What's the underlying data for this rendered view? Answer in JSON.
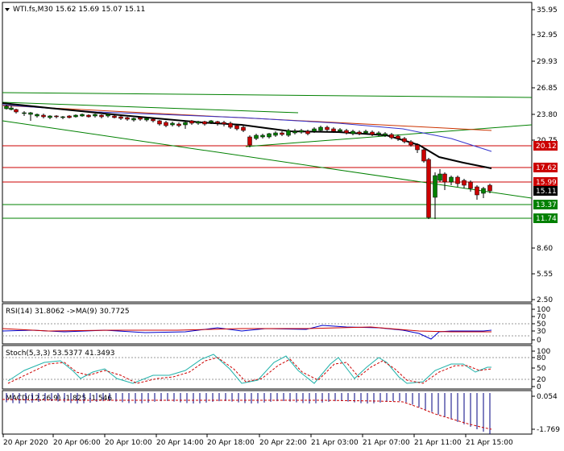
{
  "header": {
    "symbol_line": "WTI.fs,M30  15.62 15.69 15.07 15.11",
    "menu_icon": "triangle-down-icon"
  },
  "price_axis": {
    "ticks": [
      "35.95",
      "32.95",
      "29.93",
      "26.85",
      "23.80",
      "20.75",
      "8.60",
      "5.55",
      "2.50"
    ]
  },
  "level_tags": [
    {
      "label": "20.12",
      "color": "#cc0000",
      "price": 20.12
    },
    {
      "label": "17.62",
      "color": "#cc0000",
      "price": 17.62
    },
    {
      "label": "15.99",
      "color": "#cc0000",
      "price": 15.99
    },
    {
      "label": "15.11",
      "color": "#000000",
      "price": 15.11
    },
    {
      "label": "13.37",
      "color": "#008000",
      "price": 13.37
    },
    {
      "label": "11.74",
      "color": "#008000",
      "price": 11.74
    }
  ],
  "rsi": {
    "title": "RSI(14) 31.8062  ->MA(9) 30.7725",
    "ticks": [
      "100",
      "70",
      "50",
      "30",
      "0"
    ]
  },
  "stoch": {
    "title": "Stoch(5,3,3) 53.5377 41.3493",
    "ticks": [
      "100",
      "80",
      "50",
      "20",
      "0"
    ]
  },
  "macd": {
    "title": "MACD(12,26,9) -1.825 -1.546",
    "ticks": [
      "0.054",
      "-1.769"
    ]
  },
  "time_axis": {
    "labels": [
      "20 Apr 2020",
      "20 Apr 06:00",
      "20 Apr 10:00",
      "20 Apr 14:00",
      "20 Apr 18:00",
      "20 Apr 22:00",
      "21 Apr 03:00",
      "21 Apr 07:00",
      "21 Apr 11:00",
      "21 Apr 15:00"
    ]
  },
  "colors": {
    "bull": "#008000",
    "bear": "#cc0000",
    "ma_black": "#000000",
    "ma_red": "#cc3300",
    "ma_blue": "#3333cc",
    "ma_green": "#009900",
    "signal": "#cc0000",
    "rsi_line": "#0000cc",
    "stoch_main": "#20b2aa"
  }
}
